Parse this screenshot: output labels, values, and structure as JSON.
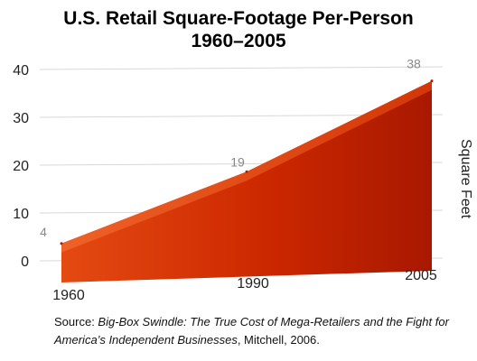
{
  "chart_data": {
    "type": "area",
    "title_lines": [
      "U.S. Retail Square-Footage Per-Person",
      "1960–2005"
    ],
    "ylabel": "Square Feet",
    "xlabel": "",
    "x": [
      "1960",
      "1990",
      "2005"
    ],
    "values": [
      4,
      19,
      38
    ],
    "data_labels": [
      "4",
      "19",
      "38"
    ],
    "y_ticks": [
      "0",
      "10",
      "20",
      "30",
      "40"
    ],
    "ylim": [
      0,
      40
    ],
    "grid": true,
    "legend": "none",
    "colors": {
      "fill": "#cc2a00",
      "top_face": "#e84a10",
      "grid": "#d8d8d8"
    }
  },
  "source": {
    "prefix": "Source: ",
    "book_title": "Big-Box Swindle: The True Cost of Mega-Retailers and the Fight for America’s Independent Businesses",
    "suffix": ", Mitchell, 2006."
  }
}
